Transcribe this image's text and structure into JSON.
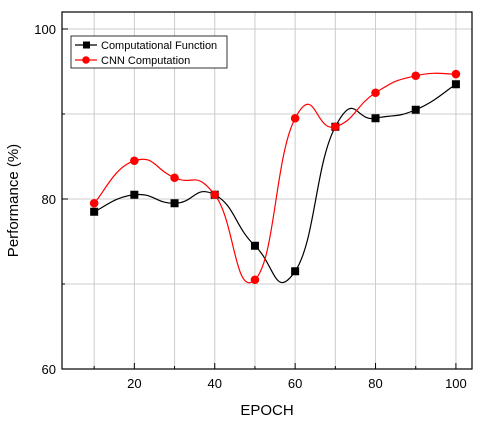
{
  "chart_data": {
    "type": "line",
    "xlabel": "EPOCH",
    "ylabel": "Performance (%)",
    "xlim": [
      2,
      104
    ],
    "ylim": [
      60,
      102
    ],
    "x_ticks": [
      20,
      40,
      60,
      80,
      100
    ],
    "y_ticks": [
      60,
      80,
      100
    ],
    "grid": true,
    "legend_position": "top-left",
    "series": [
      {
        "name": "Computational Function",
        "color": "#000000",
        "marker": "square",
        "x": [
          10,
          20,
          30,
          40,
          50,
          60,
          70,
          80,
          90,
          100
        ],
        "y": [
          78.5,
          80.5,
          79.5,
          80.5,
          74.5,
          71.5,
          88.5,
          89.5,
          90.5,
          93.5
        ]
      },
      {
        "name": "CNN Computation",
        "color": "#ff0000",
        "marker": "circle",
        "x": [
          10,
          20,
          30,
          40,
          50,
          60,
          70,
          80,
          90,
          100
        ],
        "y": [
          79.5,
          84.5,
          82.5,
          80.5,
          70.5,
          89.5,
          88.5,
          92.5,
          94.5,
          94.7
        ]
      }
    ]
  }
}
